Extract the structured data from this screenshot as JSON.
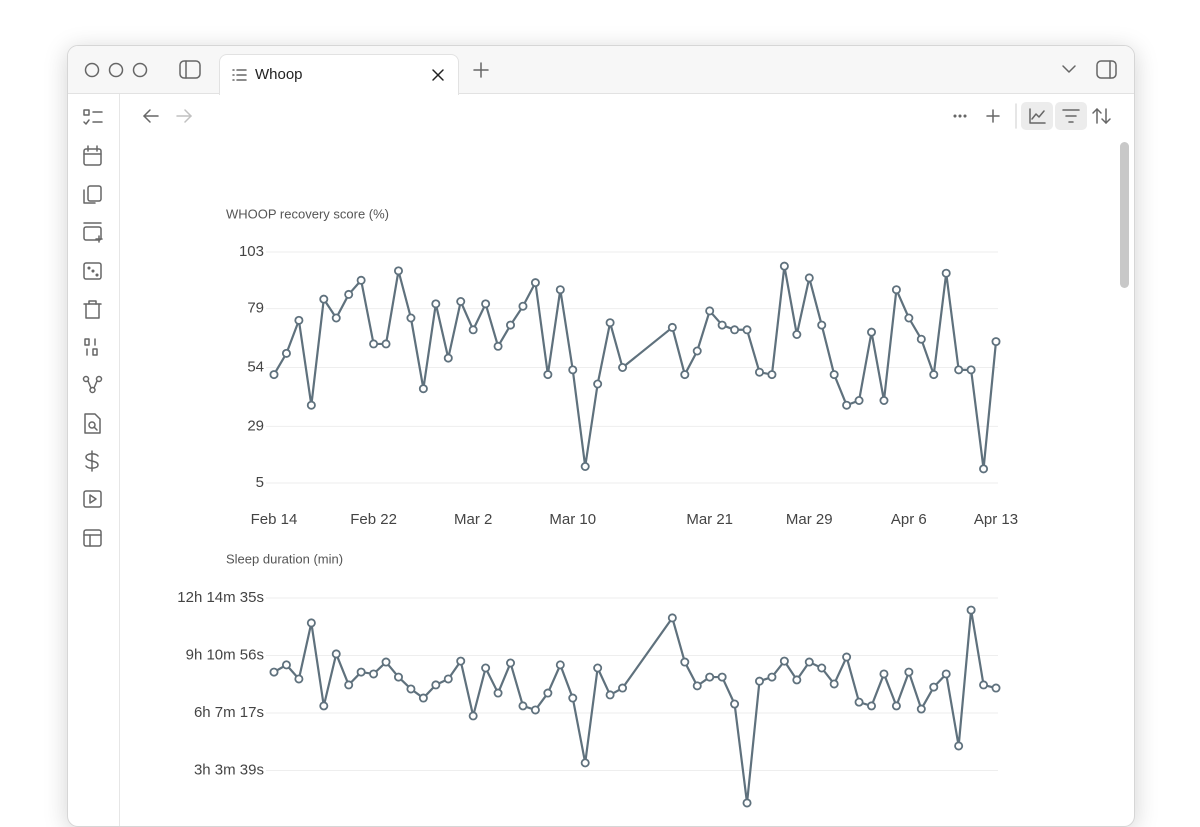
{
  "tab": {
    "title": "Whoop"
  },
  "chart_data": [
    {
      "type": "line",
      "title": "WHOOP recovery score (%)",
      "color": "#5f717d",
      "grid": true,
      "x": [
        "Feb 14",
        "Feb 15",
        "Feb 16",
        "Feb 17",
        "Feb 18",
        "Feb 19",
        "Feb 20",
        "Feb 21",
        "Feb 22",
        "Feb 23",
        "Feb 24",
        "Feb 25",
        "Feb 26",
        "Feb 27",
        "Feb 28",
        "Mar 1",
        "Mar 2",
        "Mar 3",
        "Mar 4",
        "Mar 5",
        "Mar 6",
        "Mar 7",
        "Mar 8",
        "Mar 9",
        "Mar 10",
        "Mar 11",
        "Mar 12",
        "Mar 13",
        "Mar 14",
        "Mar 18",
        "Mar 19",
        "Mar 20",
        "Mar 21",
        "Mar 22",
        "Mar 23",
        "Mar 24",
        "Mar 25",
        "Mar 26",
        "Mar 27",
        "Mar 28",
        "Mar 29",
        "Mar 30",
        "Mar 31",
        "Apr 1",
        "Apr 2",
        "Apr 3",
        "Apr 4",
        "Apr 5",
        "Apr 6",
        "Apr 7",
        "Apr 8",
        "Apr 9",
        "Apr 10",
        "Apr 11",
        "Apr 12",
        "Apr 13"
      ],
      "values": [
        51,
        60,
        74,
        38,
        83,
        75,
        85,
        91,
        64,
        64,
        95,
        75,
        45,
        81,
        58,
        82,
        70,
        81,
        63,
        72,
        80,
        90,
        51,
        87,
        53,
        12,
        47,
        73,
        54,
        71,
        51,
        61,
        78,
        72,
        70,
        70,
        52,
        51,
        97,
        68,
        92,
        72,
        51,
        38,
        40,
        69,
        40,
        87,
        75,
        66,
        51,
        94,
        53,
        53,
        11,
        65
      ],
      "xlim": [
        "Feb 14",
        "Apr 13"
      ],
      "xticks": [
        "Feb 14",
        "Feb 22",
        "Mar 2",
        "Mar 10",
        "Mar 21",
        "Mar 29",
        "Apr 6",
        "Apr 13"
      ],
      "ylim": [
        5,
        103
      ],
      "yticks": [
        5,
        29,
        54,
        79,
        103
      ]
    },
    {
      "type": "line",
      "title": "Sleep duration (min)",
      "color": "#5f717d",
      "grid": true,
      "x": [
        "Feb 14",
        "Feb 15",
        "Feb 16",
        "Feb 17",
        "Feb 18",
        "Feb 19",
        "Feb 20",
        "Feb 21",
        "Feb 22",
        "Feb 23",
        "Feb 24",
        "Feb 25",
        "Feb 26",
        "Feb 27",
        "Feb 28",
        "Mar 1",
        "Mar 2",
        "Mar 3",
        "Mar 4",
        "Mar 5",
        "Mar 6",
        "Mar 7",
        "Mar 8",
        "Mar 9",
        "Mar 10",
        "Mar 11",
        "Mar 12",
        "Mar 13",
        "Mar 14",
        "Mar 18",
        "Mar 19",
        "Mar 20",
        "Mar 21",
        "Mar 22",
        "Mar 23",
        "Mar 24",
        "Mar 25",
        "Mar 26",
        "Mar 27",
        "Mar 28",
        "Mar 29",
        "Mar 30",
        "Mar 31",
        "Apr 1",
        "Apr 2",
        "Apr 3",
        "Apr 4",
        "Apr 5",
        "Apr 6",
        "Apr 7",
        "Apr 8",
        "Apr 9",
        "Apr 10",
        "Apr 11",
        "Apr 12",
        "Apr 13"
      ],
      "values": [
        498,
        521,
        476,
        655,
        390,
        556,
        457,
        498,
        492,
        530,
        482,
        444,
        415,
        457,
        476,
        533,
        358,
        511,
        431,
        527,
        390,
        377,
        431,
        521,
        415,
        208,
        511,
        425,
        447,
        671,
        530,
        454,
        482,
        482,
        396,
        80,
        469,
        482,
        533,
        473,
        530,
        511,
        460,
        546,
        402,
        390,
        492,
        390,
        498,
        380,
        450,
        492,
        262,
        696,
        457,
        447
      ],
      "xlim": [
        "Feb 14",
        "Apr 13"
      ],
      "ylim": [
        0,
        734.583
      ],
      "yticks": [
        {
          "value": 183.65,
          "label": "3h 3m 39s"
        },
        {
          "value": 367.283,
          "label": "6h 7m 17s"
        },
        {
          "value": 550.933,
          "label": "9h 10m 56s"
        },
        {
          "value": 734.583,
          "label": "12h 14m 35s"
        }
      ]
    }
  ]
}
